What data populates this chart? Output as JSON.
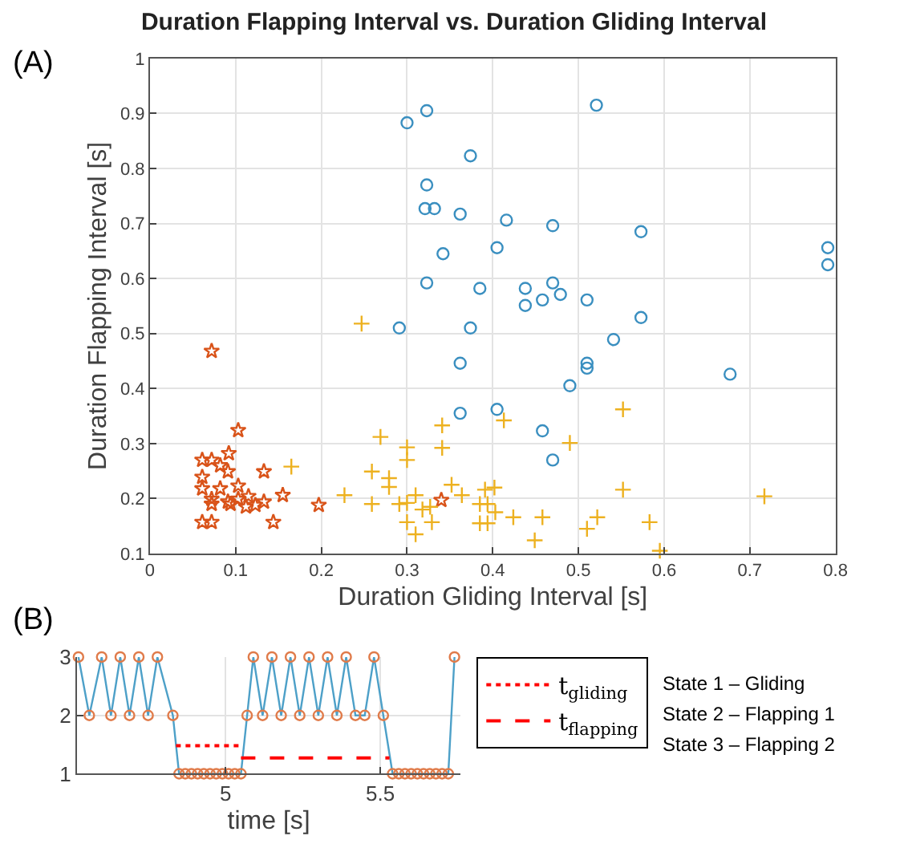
{
  "chart_data": [
    {
      "type": "scatter",
      "title": "Duration Flapping Interval vs. Duration Gliding Interval",
      "xlabel": "Duration Gliding Interval [s]",
      "ylabel": "Duration Flapping Interval [s]",
      "xlim": [
        0,
        0.8
      ],
      "ylim": [
        0.1,
        1
      ],
      "xticks": [
        0,
        0.1,
        0.2,
        0.3,
        0.4,
        0.5,
        0.6,
        0.7,
        0.8
      ],
      "yticks": [
        0.1,
        0.2,
        0.3,
        0.4,
        0.5,
        0.6,
        0.7,
        0.8,
        0.9,
        1
      ],
      "grid": true,
      "annotations": [
        "(A)"
      ],
      "series": [
        {
          "color": "#3a8fc0",
          "marker": "circle",
          "x": [
            0.3,
            0.323,
            0.374,
            0.323,
            0.321,
            0.332,
            0.362,
            0.416,
            0.342,
            0.405,
            0.323,
            0.385,
            0.291,
            0.374,
            0.362,
            0.362,
            0.405,
            0.521,
            0.47,
            0.573,
            0.791,
            0.791,
            0.438,
            0.438,
            0.458,
            0.47,
            0.479,
            0.51,
            0.573,
            0.541,
            0.51,
            0.51,
            0.49,
            0.677,
            0.458,
            0.47
          ],
          "values": [
            0.883,
            0.905,
            0.823,
            0.77,
            0.727,
            0.727,
            0.717,
            0.706,
            0.645,
            0.656,
            0.592,
            0.582,
            0.51,
            0.51,
            0.446,
            0.355,
            0.362,
            0.915,
            0.696,
            0.685,
            0.656,
            0.625,
            0.582,
            0.551,
            0.561,
            0.592,
            0.571,
            0.561,
            0.529,
            0.489,
            0.446,
            0.437,
            0.405,
            0.426,
            0.323,
            0.27
          ]
        },
        {
          "color": "#d95319",
          "marker": "star",
          "x": [
            0.072,
            0.103,
            0.061,
            0.072,
            0.092,
            0.082,
            0.091,
            0.061,
            0.133,
            0.061,
            0.082,
            0.103,
            0.072,
            0.091,
            0.103,
            0.115,
            0.072,
            0.094,
            0.112,
            0.123,
            0.133,
            0.155,
            0.197,
            0.34,
            0.061,
            0.072,
            0.144
          ],
          "values": [
            0.468,
            0.324,
            0.27,
            0.27,
            0.282,
            0.26,
            0.249,
            0.239,
            0.249,
            0.218,
            0.218,
            0.223,
            0.199,
            0.194,
            0.199,
            0.204,
            0.19,
            0.19,
            0.185,
            0.188,
            0.194,
            0.206,
            0.188,
            0.197,
            0.157,
            0.157,
            0.157
          ]
        },
        {
          "color": "#edb120",
          "marker": "cross",
          "x": [
            0.247,
            0.165,
            0.269,
            0.3,
            0.3,
            0.341,
            0.341,
            0.259,
            0.279,
            0.279,
            0.227,
            0.259,
            0.291,
            0.3,
            0.31,
            0.318,
            0.327,
            0.352,
            0.364,
            0.3,
            0.329,
            0.31,
            0.413,
            0.391,
            0.402,
            0.385,
            0.394,
            0.385,
            0.394,
            0.403,
            0.424,
            0.552,
            0.49,
            0.552,
            0.717,
            0.458,
            0.449,
            0.522,
            0.51,
            0.583,
            0.595
          ],
          "values": [
            0.518,
            0.258,
            0.312,
            0.293,
            0.27,
            0.333,
            0.292,
            0.249,
            0.237,
            0.221,
            0.206,
            0.19,
            0.19,
            0.192,
            0.206,
            0.18,
            0.185,
            0.225,
            0.206,
            0.157,
            0.157,
            0.135,
            0.342,
            0.216,
            0.22,
            0.19,
            0.19,
            0.155,
            0.155,
            0.175,
            0.166,
            0.362,
            0.301,
            0.216,
            0.204,
            0.166,
            0.124,
            0.166,
            0.145,
            0.157,
            0.105
          ]
        }
      ]
    },
    {
      "type": "line",
      "xlabel": "time [s]",
      "xlim": [
        4.52,
        5.76
      ],
      "ylim": [
        1,
        3
      ],
      "xticks": [
        5,
        5.5
      ],
      "yticks": [
        1,
        2,
        3
      ],
      "grid": true,
      "legend": "right",
      "annotations": [
        "(B)",
        "State 1 – Gliding",
        "State 2 – Flapping 1",
        "State 3 – Flapping 2"
      ],
      "series": [
        {
          "type": "line",
          "color": "#4da0c8",
          "marker": "none",
          "x": [
            4.525,
            4.56,
            4.6,
            4.63,
            4.66,
            4.69,
            4.72,
            4.75,
            4.78,
            4.83,
            4.85,
            4.87,
            4.89,
            4.91,
            4.93,
            4.95,
            4.97,
            4.99,
            5.01,
            5.03,
            5.05,
            5.07,
            5.09,
            5.12,
            5.15,
            5.18,
            5.21,
            5.24,
            5.27,
            5.3,
            5.33,
            5.36,
            5.39,
            5.42,
            5.45,
            5.48,
            5.51,
            5.54,
            5.56,
            5.58,
            5.6,
            5.62,
            5.64,
            5.66,
            5.68,
            5.7,
            5.72,
            5.74
          ],
          "values": [
            3,
            2,
            3,
            2,
            3,
            2,
            3,
            2,
            3,
            2,
            1,
            1,
            1,
            1,
            1,
            1,
            1,
            1,
            1,
            1,
            1,
            2,
            3,
            2,
            3,
            2,
            3,
            2,
            3,
            2,
            3,
            2,
            3,
            2,
            2,
            3,
            2,
            1,
            1,
            1,
            1,
            1,
            1,
            1,
            1,
            1,
            1,
            3
          ]
        },
        {
          "type": "scatter",
          "color": "#e07b4a",
          "marker": "circle",
          "x": [
            4.525,
            4.56,
            4.6,
            4.63,
            4.66,
            4.69,
            4.72,
            4.75,
            4.78,
            4.83,
            4.85,
            4.87,
            4.89,
            4.91,
            4.93,
            4.95,
            4.97,
            4.99,
            5.01,
            5.03,
            5.05,
            5.07,
            5.09,
            5.12,
            5.15,
            5.18,
            5.21,
            5.24,
            5.27,
            5.3,
            5.33,
            5.36,
            5.39,
            5.42,
            5.45,
            5.48,
            5.51,
            5.54,
            5.56,
            5.58,
            5.6,
            5.62,
            5.64,
            5.66,
            5.68,
            5.7,
            5.72,
            5.74
          ],
          "values": [
            3,
            2,
            3,
            2,
            3,
            2,
            3,
            2,
            3,
            2,
            1,
            1,
            1,
            1,
            1,
            1,
            1,
            1,
            1,
            1,
            1,
            2,
            3,
            2,
            3,
            2,
            3,
            2,
            3,
            2,
            3,
            2,
            3,
            2,
            2,
            3,
            2,
            1,
            1,
            1,
            1,
            1,
            1,
            1,
            1,
            1,
            1,
            3
          ]
        },
        {
          "type": "line",
          "name": "t$_{gliding}$",
          "color": "#ff0000",
          "line_style": "dotted",
          "marker": "none",
          "x": [
            4.84,
            5.05
          ],
          "values": [
            1.48,
            1.48
          ]
        },
        {
          "type": "line",
          "name": "t$_{flapping}$",
          "color": "#ff0000",
          "line_style": "dashed",
          "marker": "none",
          "x": [
            5.05,
            5.53
          ],
          "values": [
            1.27,
            1.27
          ]
        }
      ]
    }
  ]
}
